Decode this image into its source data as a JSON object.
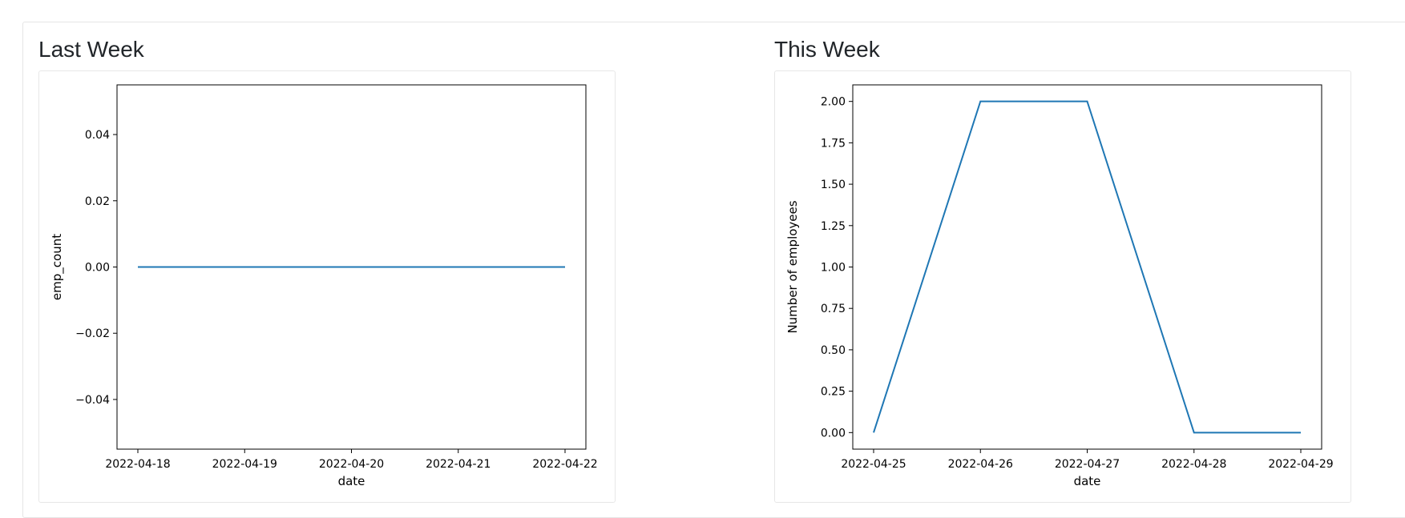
{
  "dashboard": {
    "panels": [
      {
        "title": "Last Week"
      },
      {
        "title": "This Week"
      }
    ]
  },
  "chart_data": [
    {
      "type": "line",
      "title": "",
      "xlabel": "date",
      "ylabel": "emp_count",
      "x": [
        "2022-04-18",
        "2022-04-19",
        "2022-04-20",
        "2022-04-21",
        "2022-04-22"
      ],
      "x_ticks": [
        "2022-04-18",
        "2022-04-19",
        "2022-04-20",
        "2022-04-21",
        "2022-04-22"
      ],
      "y_ticks": [
        0.04,
        0.02,
        0.0,
        -0.02,
        -0.04
      ],
      "y_tick_labels": [
        "0.04",
        "0.02",
        "0.00",
        "−0.02",
        "−0.04"
      ],
      "ylim": [
        -0.055,
        0.055
      ],
      "series": [
        {
          "values": [
            0,
            0,
            0,
            0,
            0
          ],
          "color": "#1f77b4"
        }
      ],
      "grid": false,
      "legend": false
    },
    {
      "type": "line",
      "title": "",
      "xlabel": "date",
      "ylabel": "Number of employees",
      "x": [
        "2022-04-25",
        "2022-04-26",
        "2022-04-27",
        "2022-04-28",
        "2022-04-29"
      ],
      "x_ticks": [
        "2022-04-25",
        "2022-04-26",
        "2022-04-27",
        "2022-04-28",
        "2022-04-29"
      ],
      "y_ticks": [
        2.0,
        1.75,
        1.5,
        1.25,
        1.0,
        0.75,
        0.5,
        0.25,
        0.0
      ],
      "y_tick_labels": [
        "2.00",
        "1.75",
        "1.50",
        "1.25",
        "1.00",
        "0.75",
        "0.50",
        "0.25",
        "0.00"
      ],
      "ylim": [
        -0.1,
        2.1
      ],
      "series": [
        {
          "values": [
            0,
            2,
            2,
            0,
            0
          ],
          "color": "#1f77b4"
        }
      ],
      "grid": false,
      "legend": false
    }
  ]
}
